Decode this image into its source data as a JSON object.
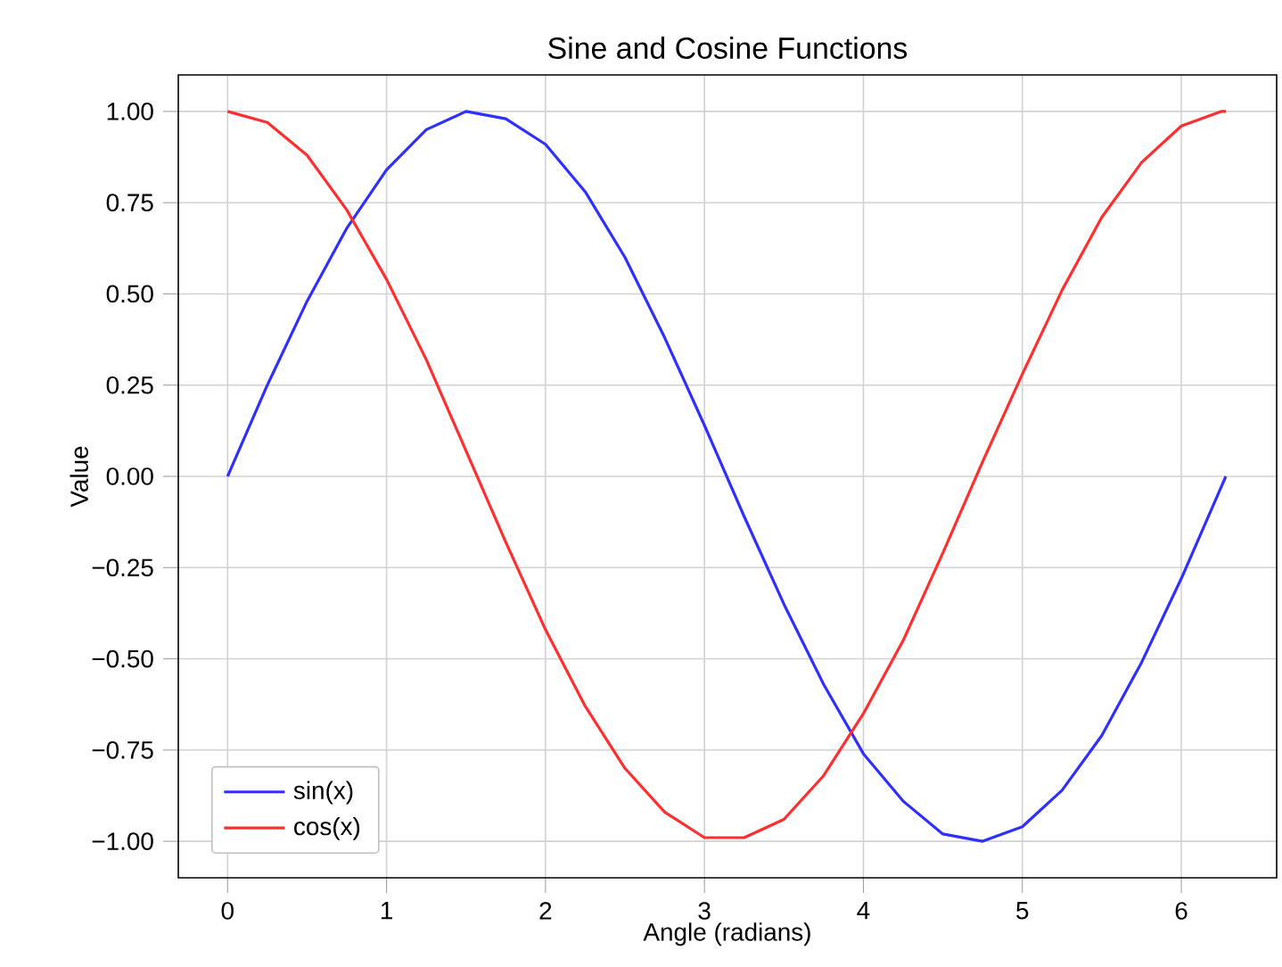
{
  "chart_data": {
    "type": "line",
    "title": "Sine and Cosine Functions",
    "xlabel": "Angle (radians)",
    "ylabel": "Value",
    "x": [
      0,
      0.25,
      0.5,
      0.75,
      1,
      1.25,
      1.5,
      1.75,
      2,
      2.25,
      2.5,
      2.75,
      3,
      3.25,
      3.5,
      3.75,
      4,
      4.25,
      4.5,
      4.75,
      5,
      5.25,
      5.5,
      5.75,
      6,
      6.25,
      6.28
    ],
    "series": [
      {
        "name": "sin(x)",
        "color": "#2f2fff",
        "values": [
          0,
          0.25,
          0.48,
          0.68,
          0.84,
          0.95,
          1.0,
          0.98,
          0.91,
          0.78,
          0.6,
          0.38,
          0.14,
          -0.11,
          -0.35,
          -0.57,
          -0.76,
          -0.89,
          -0.98,
          -1.0,
          -0.96,
          -0.86,
          -0.71,
          -0.51,
          -0.28,
          -0.03,
          0
        ]
      },
      {
        "name": "cos(x)",
        "color": "#ff2f2f",
        "values": [
          1,
          0.97,
          0.88,
          0.73,
          0.54,
          0.32,
          0.07,
          -0.18,
          -0.42,
          -0.63,
          -0.8,
          -0.92,
          -0.99,
          -0.99,
          -0.94,
          -0.82,
          -0.65,
          -0.45,
          -0.21,
          0.04,
          0.28,
          0.51,
          0.71,
          0.86,
          0.96,
          1.0,
          1.0
        ]
      }
    ],
    "xlim": [
      -0.31,
      6.6
    ],
    "ylim": [
      -1.1,
      1.1
    ],
    "xticks": [
      0,
      1,
      2,
      3,
      4,
      5,
      6
    ],
    "yticks": [
      {
        "value": -1,
        "label": "−1.00"
      },
      {
        "value": -0.75,
        "label": "−0.75"
      },
      {
        "value": -0.5,
        "label": "−0.50"
      },
      {
        "value": -0.25,
        "label": "−0.25"
      },
      {
        "value": 0,
        "label": "0.00"
      },
      {
        "value": 0.25,
        "label": "0.25"
      },
      {
        "value": 0.5,
        "label": "0.50"
      },
      {
        "value": 0.75,
        "label": "0.75"
      },
      {
        "value": 1,
        "label": "1.00"
      }
    ],
    "grid": true,
    "legend": "bottom left",
    "line_style": "solid",
    "marker": "none"
  }
}
